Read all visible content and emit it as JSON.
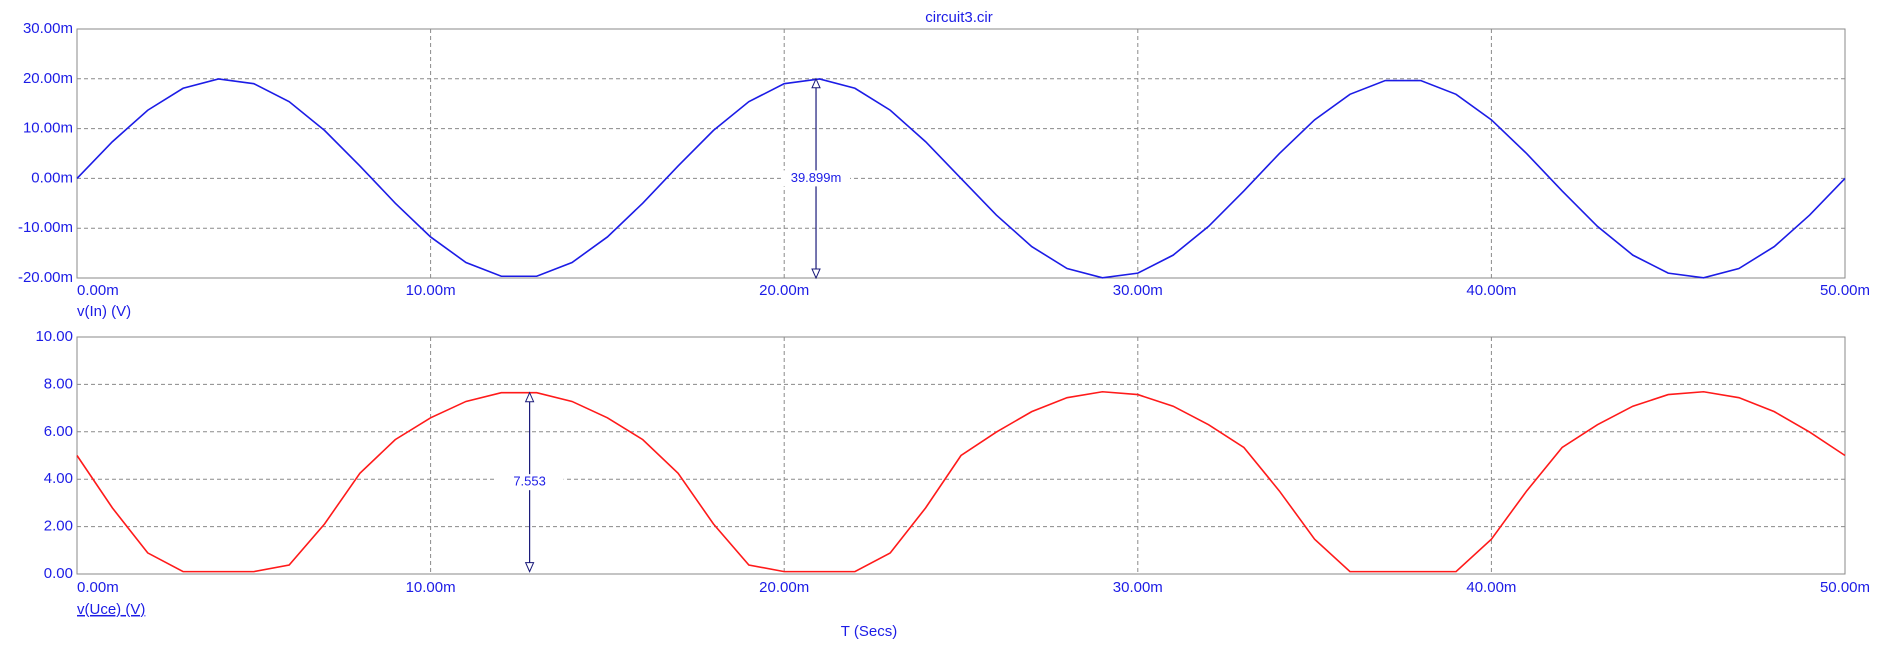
{
  "chart_data": [
    {
      "type": "line",
      "title": "circuit3.cir",
      "x": [
        0,
        0.001,
        0.002,
        0.003,
        0.004,
        0.005,
        0.006,
        0.007,
        0.008,
        0.009,
        0.01,
        0.011,
        0.012,
        0.013,
        0.014,
        0.015,
        0.016,
        0.017,
        0.018,
        0.019,
        0.02,
        0.021,
        0.022,
        0.023,
        0.024,
        0.025,
        0.026,
        0.027,
        0.028,
        0.029,
        0.03,
        0.031,
        0.032,
        0.033,
        0.034,
        0.035,
        0.036,
        0.037,
        0.038,
        0.039,
        0.04,
        0.041,
        0.042,
        0.043,
        0.044,
        0.045,
        0.046,
        0.047,
        0.048,
        0.049,
        0.05
      ],
      "series": [
        {
          "name": "v(In) (V)",
          "color": "#1c1ce6",
          "values": [
            0,
            0.00736,
            0.01369,
            0.0181,
            0.01996,
            0.01902,
            0.01541,
            0.00964,
            0.00251,
            -0.00497,
            -0.01176,
            -0.01689,
            -0.01965,
            -0.01965,
            -0.01689,
            -0.01176,
            -0.00497,
            0.00251,
            0.00964,
            0.01541,
            0.01902,
            0.01996,
            0.0181,
            0.01369,
            0.00736,
            0,
            -0.00736,
            -0.01369,
            -0.0181,
            -0.01996,
            -0.01902,
            -0.01541,
            -0.00964,
            -0.00251,
            0.00497,
            0.01176,
            0.01689,
            0.01965,
            0.01965,
            0.01689,
            0.01176,
            0.00497,
            -0.00251,
            -0.00964,
            -0.01541,
            -0.01902,
            -0.01996,
            -0.0181,
            -0.01369,
            -0.00736,
            0
          ]
        }
      ],
      "xlim": [
        0,
        0.05
      ],
      "xticks": [
        {
          "value": 0,
          "label": "0.00m"
        },
        {
          "value": 0.01,
          "label": "10.00m"
        },
        {
          "value": 0.02,
          "label": "20.00m"
        },
        {
          "value": 0.03,
          "label": "30.00m"
        },
        {
          "value": 0.04,
          "label": "40.00m"
        },
        {
          "value": 0.05,
          "label": "50.00m"
        }
      ],
      "ylim": [
        -0.02,
        0.03
      ],
      "yticks": [
        {
          "value": -0.02,
          "label": "-20.00m"
        },
        {
          "value": -0.01,
          "label": "-10.00m"
        },
        {
          "value": 0,
          "label": "0.00m"
        },
        {
          "value": 0.01,
          "label": "10.00m"
        },
        {
          "value": 0.02,
          "label": "20.00m"
        },
        {
          "value": 0.03,
          "label": "30.00m"
        }
      ],
      "grid": true,
      "annotations": [
        {
          "label": "39.899m",
          "x": 0.0209,
          "from": 0.02,
          "to": -0.02
        }
      ]
    },
    {
      "type": "line",
      "xlabel": "T (Secs)",
      "x": [
        0,
        0.001,
        0.002,
        0.003,
        0.004,
        0.005,
        0.006,
        0.007,
        0.008,
        0.009,
        0.01,
        0.011,
        0.012,
        0.013,
        0.014,
        0.015,
        0.016,
        0.017,
        0.018,
        0.019,
        0.02,
        0.021,
        0.022,
        0.023,
        0.024,
        0.025,
        0.026,
        0.027,
        0.028,
        0.029,
        0.03,
        0.031,
        0.032,
        0.033,
        0.034,
        0.035,
        0.036,
        0.037,
        0.038,
        0.039,
        0.04,
        0.041,
        0.042,
        0.043,
        0.044,
        0.045,
        0.046,
        0.047,
        0.048,
        0.049,
        0.05
      ],
      "series": [
        {
          "name": "v(Uce) (V)",
          "color": "#ff1a1a",
          "values": [
            5.0,
            2.79,
            0.89,
            0.1,
            0.1,
            0.1,
            0.38,
            2.11,
            4.25,
            5.67,
            6.59,
            7.28,
            7.65,
            7.65,
            7.28,
            6.59,
            5.67,
            4.25,
            2.11,
            0.38,
            0.1,
            0.1,
            0.1,
            0.89,
            2.79,
            5.0,
            5.99,
            6.85,
            7.44,
            7.69,
            7.57,
            7.08,
            6.3,
            5.34,
            3.51,
            1.47,
            0.1,
            0.1,
            0.1,
            0.1,
            1.47,
            3.51,
            5.34,
            6.3,
            7.08,
            7.57,
            7.69,
            7.44,
            6.85,
            5.99,
            5.0
          ]
        }
      ],
      "xlim": [
        0,
        0.05
      ],
      "xticks": [
        {
          "value": 0,
          "label": "0.00m"
        },
        {
          "value": 0.01,
          "label": "10.00m"
        },
        {
          "value": 0.02,
          "label": "20.00m"
        },
        {
          "value": 0.03,
          "label": "30.00m"
        },
        {
          "value": 0.04,
          "label": "40.00m"
        },
        {
          "value": 0.05,
          "label": "50.00m"
        }
      ],
      "ylim": [
        0,
        10
      ],
      "yticks": [
        {
          "value": 0,
          "label": "0.00"
        },
        {
          "value": 2,
          "label": "2.00"
        },
        {
          "value": 4,
          "label": "4.00"
        },
        {
          "value": 6,
          "label": "6.00"
        },
        {
          "value": 8,
          "label": "8.00"
        },
        {
          "value": 10,
          "label": "10.00"
        }
      ],
      "grid": true,
      "annotations": [
        {
          "label": "7.553",
          "x": 0.0128,
          "from": 7.65,
          "to": 0.1
        }
      ]
    }
  ]
}
